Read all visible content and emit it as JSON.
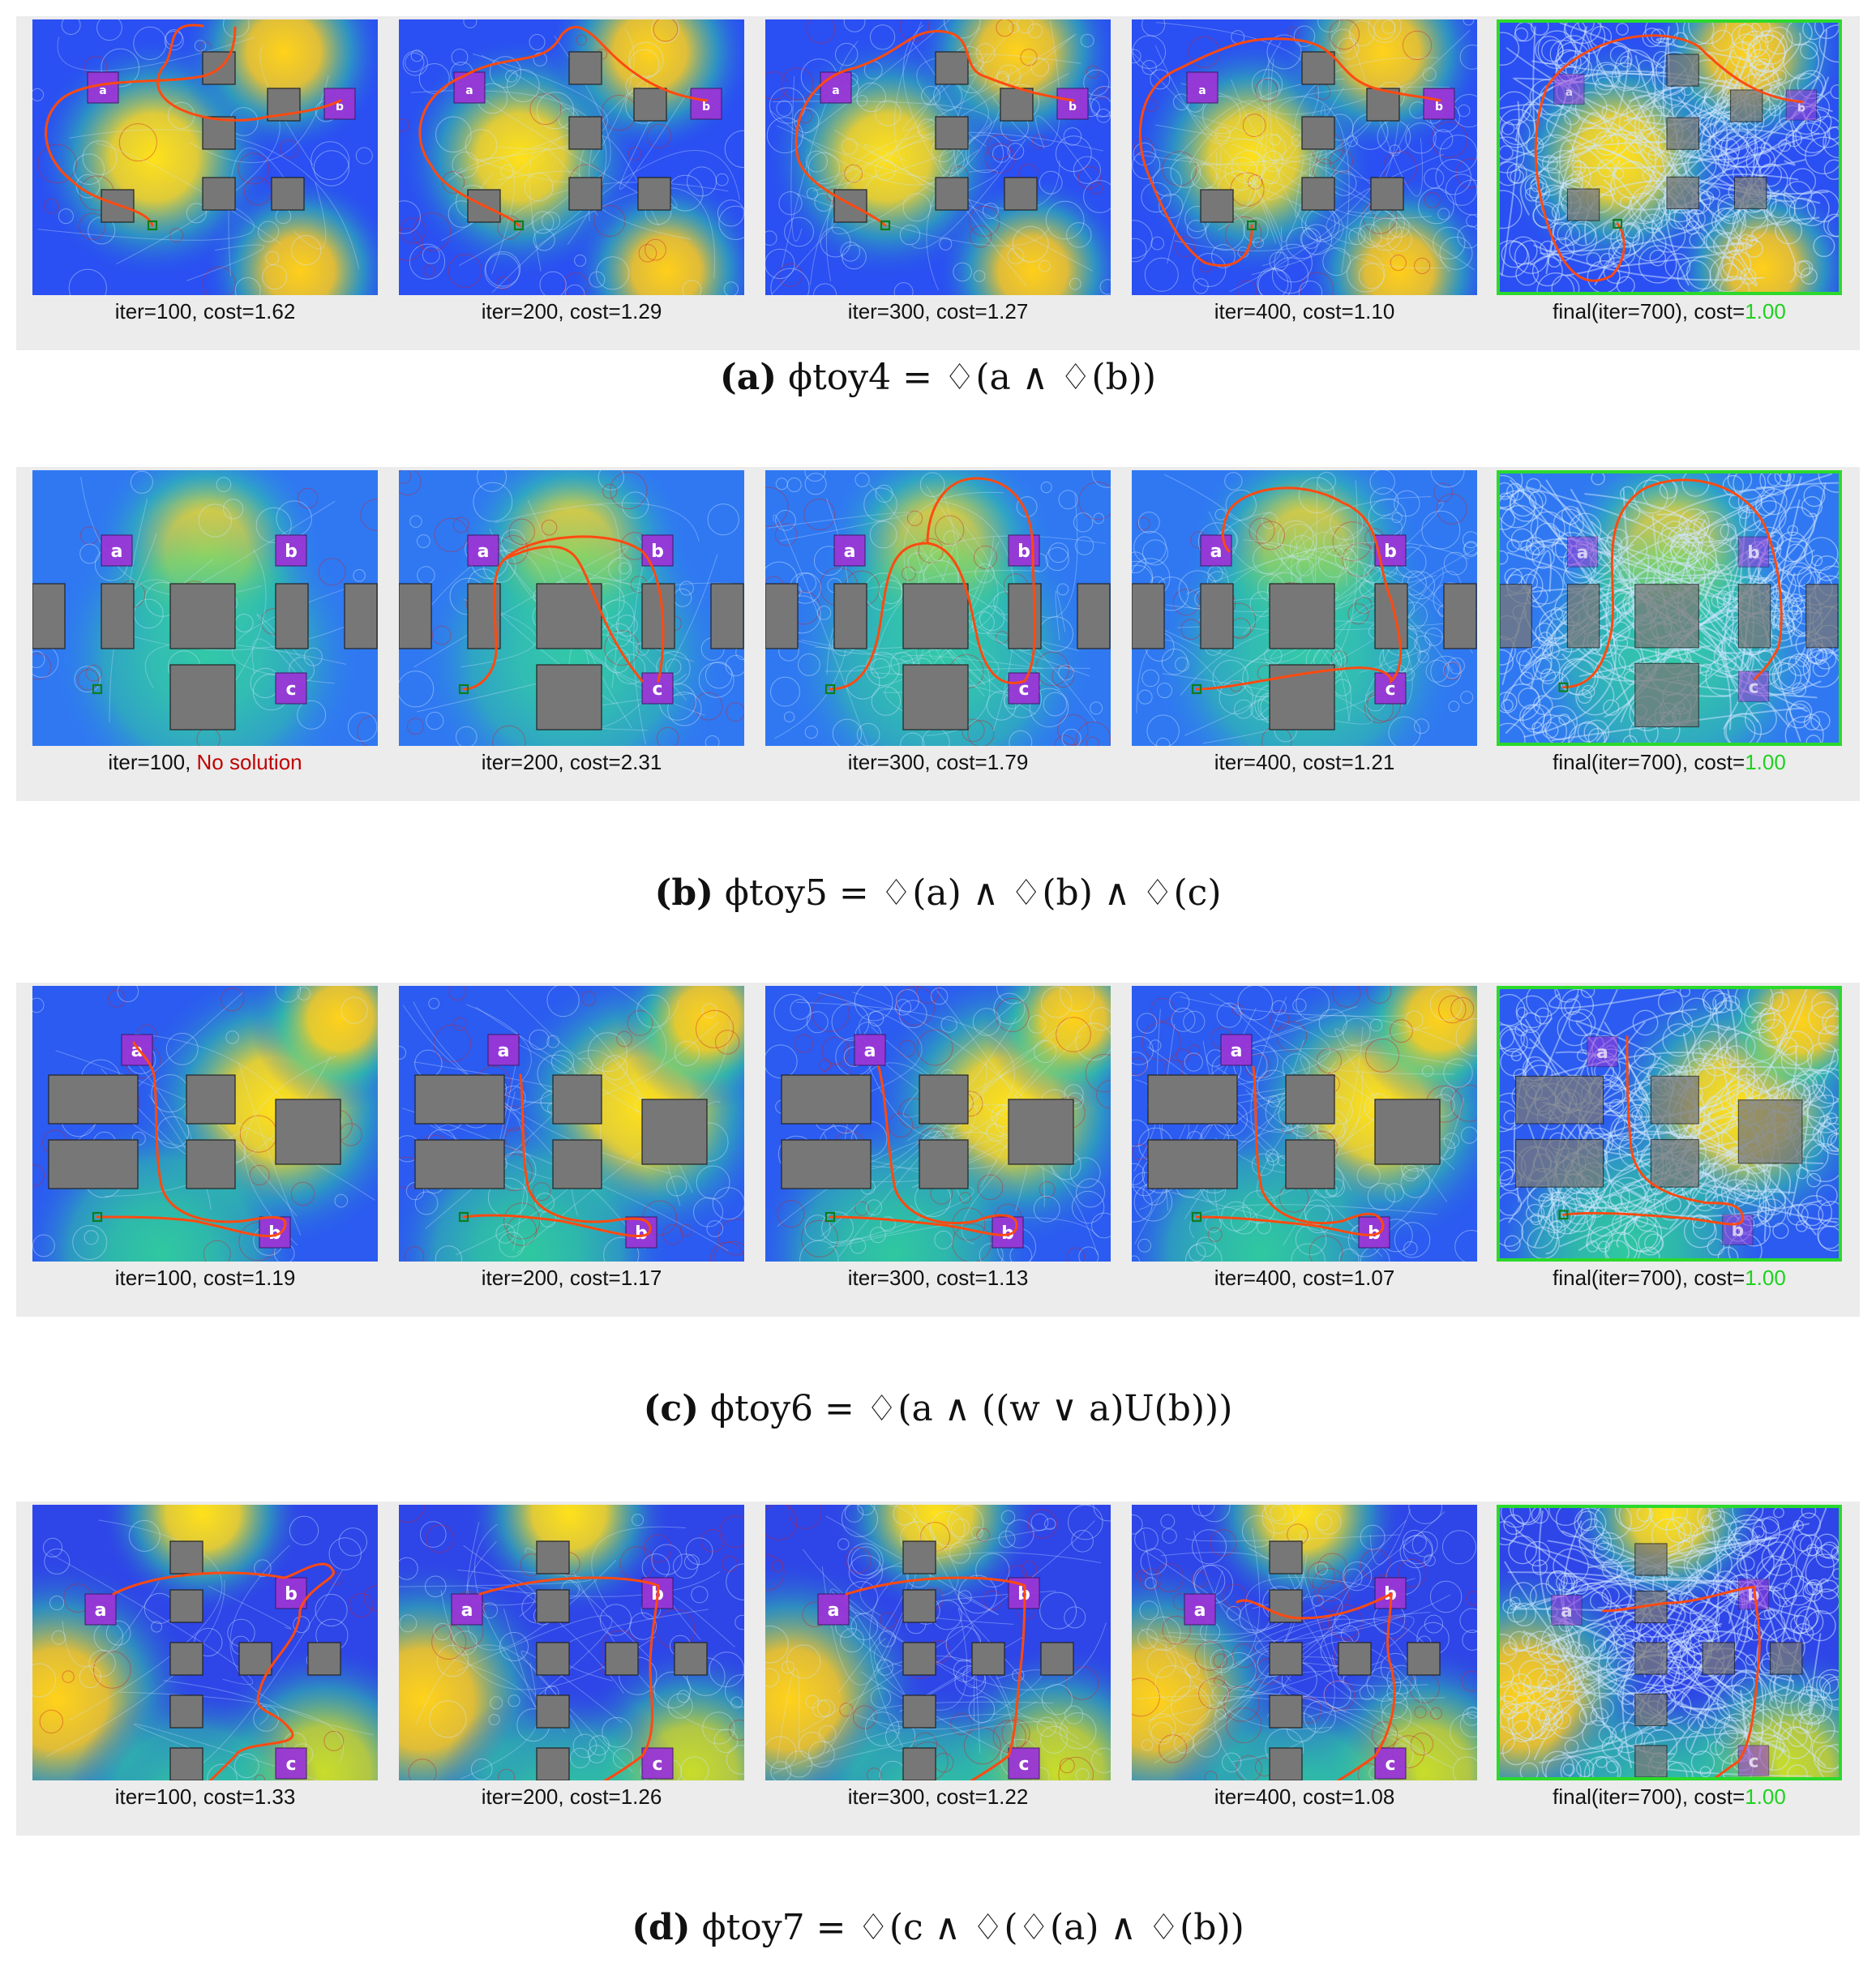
{
  "colors": {
    "background_blue": "#2b5bf0",
    "heat_yellow": "#ffe11a",
    "heat_green": "#2fc8a0",
    "obstacle": "#777777",
    "region": "#9a36d6",
    "path": "#ff4a10",
    "tree": "#cfe6ff",
    "final_border": "#2bd92b",
    "start": "#0f7d1c"
  },
  "panels": [
    {
      "id": "a",
      "caption": {
        "tag": "(a)",
        "formula": "ϕtoy4 = ♢(a ∧ ♢(b))"
      },
      "frames": [
        {
          "iter": "iter=100",
          "cost_prefix": ", cost=",
          "cost": "1.62",
          "status": ""
        },
        {
          "iter": "iter=200",
          "cost_prefix": ", cost=",
          "cost": "1.29",
          "status": ""
        },
        {
          "iter": "iter=300",
          "cost_prefix": ", cost=",
          "cost": "1.27",
          "status": ""
        },
        {
          "iter": "iter=400",
          "cost_prefix": ", cost=",
          "cost": "1.10",
          "status": ""
        },
        {
          "iter": "final(iter=700)",
          "cost_prefix": ", cost=",
          "cost": "1.00",
          "status": "good"
        }
      ],
      "regions": [
        {
          "label": "a"
        },
        {
          "label": "b"
        }
      ]
    },
    {
      "id": "b",
      "caption": {
        "tag": "(b)",
        "formula": "ϕtoy5 = ♢(a) ∧ ♢(b) ∧ ♢(c)"
      },
      "frames": [
        {
          "iter": "iter=100",
          "cost_prefix": ", ",
          "cost": "No solution",
          "status": "bad"
        },
        {
          "iter": "iter=200",
          "cost_prefix": ", cost=",
          "cost": "2.31",
          "status": ""
        },
        {
          "iter": "iter=300",
          "cost_prefix": ", cost=",
          "cost": "1.79",
          "status": ""
        },
        {
          "iter": "iter=400",
          "cost_prefix": ", cost=",
          "cost": "1.21",
          "status": ""
        },
        {
          "iter": "final(iter=700)",
          "cost_prefix": ", cost=",
          "cost": "1.00",
          "status": "good"
        }
      ],
      "regions": [
        {
          "label": "a"
        },
        {
          "label": "b"
        },
        {
          "label": "c"
        }
      ]
    },
    {
      "id": "c",
      "caption": {
        "tag": "(c)",
        "formula": "ϕtoy6 = ♢(a ∧ ((w ∨ a)U(b)))"
      },
      "frames": [
        {
          "iter": "iter=100",
          "cost_prefix": ", cost=",
          "cost": "1.19",
          "status": ""
        },
        {
          "iter": "iter=200",
          "cost_prefix": ", cost=",
          "cost": "1.17",
          "status": ""
        },
        {
          "iter": "iter=300",
          "cost_prefix": ", cost=",
          "cost": "1.13",
          "status": ""
        },
        {
          "iter": "iter=400",
          "cost_prefix": ", cost=",
          "cost": "1.07",
          "status": ""
        },
        {
          "iter": "final(iter=700)",
          "cost_prefix": ", cost=",
          "cost": "1.00",
          "status": "good"
        }
      ],
      "regions": [
        {
          "label": "a"
        },
        {
          "label": "b"
        }
      ]
    },
    {
      "id": "d",
      "caption": {
        "tag": "(d)",
        "formula": "ϕtoy7 = ♢(c ∧ ♢(♢(a) ∧ ♢(b))"
      },
      "frames": [
        {
          "iter": "iter=100",
          "cost_prefix": ", cost=",
          "cost": "1.33",
          "status": ""
        },
        {
          "iter": "iter=200",
          "cost_prefix": ", cost=",
          "cost": "1.26",
          "status": ""
        },
        {
          "iter": "iter=300",
          "cost_prefix": ", cost=",
          "cost": "1.22",
          "status": ""
        },
        {
          "iter": "iter=400",
          "cost_prefix": ", cost=",
          "cost": "1.08",
          "status": ""
        },
        {
          "iter": "final(iter=700)",
          "cost_prefix": ", cost=",
          "cost": "1.00",
          "status": "good"
        }
      ],
      "regions": [
        {
          "label": "a"
        },
        {
          "label": "b"
        },
        {
          "label": "c"
        }
      ]
    }
  ]
}
